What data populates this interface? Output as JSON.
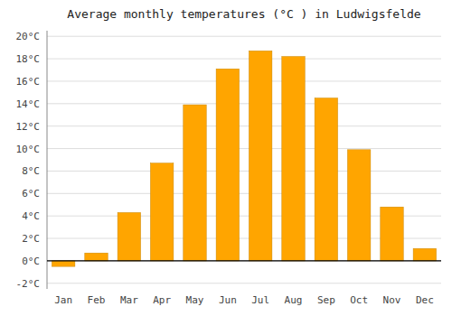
{
  "chart_data": {
    "type": "bar",
    "title": "Average monthly temperatures (°C ) in Ludwigsfelde",
    "categories": [
      "Jan",
      "Feb",
      "Mar",
      "Apr",
      "May",
      "Jun",
      "Jul",
      "Aug",
      "Sep",
      "Oct",
      "Nov",
      "Dec"
    ],
    "values": [
      -0.5,
      0.7,
      4.3,
      8.7,
      13.9,
      17.1,
      18.7,
      18.2,
      14.5,
      9.9,
      4.8,
      1.1
    ],
    "color": "#FFA500",
    "ylim": [
      -2.5,
      20.5
    ],
    "yticks": [
      {
        "value": -2,
        "label": "-2°C"
      },
      {
        "value": 0,
        "label": "0°C"
      },
      {
        "value": 2,
        "label": "2°C"
      },
      {
        "value": 4,
        "label": "4°C"
      },
      {
        "value": 6,
        "label": "6°C"
      },
      {
        "value": 8,
        "label": "8°C"
      },
      {
        "value": 10,
        "label": "10°C"
      },
      {
        "value": 12,
        "label": "12°C"
      },
      {
        "value": 14,
        "label": "14°C"
      },
      {
        "value": 16,
        "label": "16°C"
      },
      {
        "value": 18,
        "label": "18°C"
      },
      {
        "value": 20,
        "label": "20°C"
      }
    ],
    "grid": true
  }
}
